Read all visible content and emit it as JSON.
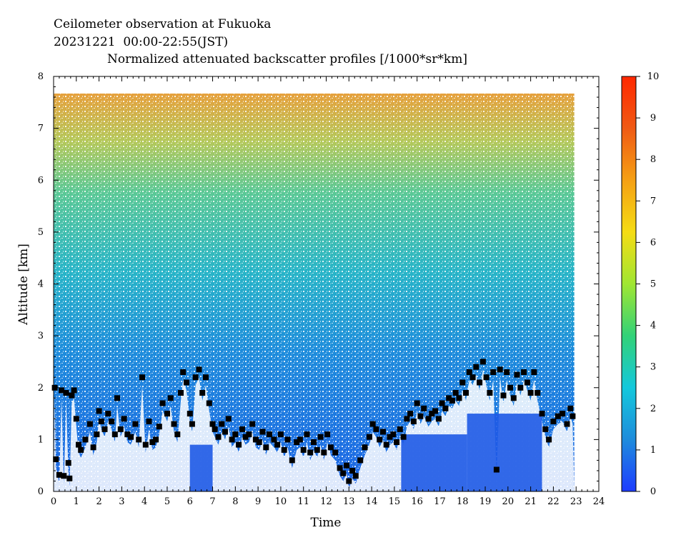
{
  "header": {
    "line1": "Ceilometer observation at Fukuoka",
    "line2": "20231221  00:00-22:55(JST)",
    "line3": "Normalized attenuated backscatter profiles [/1000*sr*km]"
  },
  "chart_data": {
    "type": "heatmap",
    "title": "Normalized attenuated backscatter profiles [/1000*sr*km]",
    "xlabel": "Time",
    "ylabel": "Altitude [km]",
    "xlim": [
      0,
      24
    ],
    "ylim": [
      0,
      8
    ],
    "x_ticks": [
      "0",
      "1",
      "2",
      "3",
      "4",
      "5",
      "6",
      "7",
      "8",
      "9",
      "10",
      "11",
      "12",
      "13",
      "14",
      "15",
      "16",
      "17",
      "18",
      "19",
      "20",
      "21",
      "22",
      "23",
      "24"
    ],
    "y_ticks": [
      "0",
      "1",
      "2",
      "3",
      "4",
      "5",
      "6",
      "7",
      "8"
    ],
    "data_extent": {
      "time_start": 0,
      "time_end": 22.92,
      "altitude_top": 7.67
    },
    "colorbar": {
      "range": [
        0,
        10
      ],
      "ticks": [
        "0",
        "1",
        "2",
        "3",
        "4",
        "5",
        "6",
        "7",
        "8",
        "9",
        "10"
      ],
      "stops": [
        "#1e3cff",
        "#1e8cdc",
        "#14c8dc",
        "#32d278",
        "#a0e632",
        "#f5dc14",
        "#f5a014",
        "#f05a14",
        "#ff2800"
      ]
    },
    "cloud_base_series": {
      "name": "",
      "marker": "black square",
      "points": [
        [
          0.05,
          2.0
        ],
        [
          0.1,
          0.62
        ],
        [
          0.25,
          0.32
        ],
        [
          0.35,
          1.95
        ],
        [
          0.45,
          0.3
        ],
        [
          0.55,
          1.9
        ],
        [
          0.65,
          0.55
        ],
        [
          0.7,
          0.25
        ],
        [
          0.8,
          1.85
        ],
        [
          0.9,
          1.95
        ],
        [
          1.0,
          1.4
        ],
        [
          1.1,
          0.9
        ],
        [
          1.2,
          0.8
        ],
        [
          1.4,
          1.0
        ],
        [
          1.6,
          1.3
        ],
        [
          1.75,
          0.85
        ],
        [
          1.9,
          1.1
        ],
        [
          2.0,
          1.55
        ],
        [
          2.1,
          1.35
        ],
        [
          2.25,
          1.2
        ],
        [
          2.4,
          1.5
        ],
        [
          2.55,
          1.35
        ],
        [
          2.7,
          1.1
        ],
        [
          2.8,
          1.8
        ],
        [
          2.95,
          1.2
        ],
        [
          3.1,
          1.4
        ],
        [
          3.25,
          1.1
        ],
        [
          3.4,
          1.05
        ],
        [
          3.6,
          1.3
        ],
        [
          3.75,
          1.0
        ],
        [
          3.9,
          2.2
        ],
        [
          4.05,
          0.9
        ],
        [
          4.2,
          1.35
        ],
        [
          4.35,
          0.95
        ],
        [
          4.5,
          1.0
        ],
        [
          4.65,
          1.25
        ],
        [
          4.8,
          1.7
        ],
        [
          5.0,
          1.5
        ],
        [
          5.15,
          1.8
        ],
        [
          5.3,
          1.3
        ],
        [
          5.45,
          1.1
        ],
        [
          5.6,
          1.9
        ],
        [
          5.7,
          2.3
        ],
        [
          5.85,
          2.1
        ],
        [
          6.0,
          1.5
        ],
        [
          6.1,
          1.3
        ],
        [
          6.25,
          2.2
        ],
        [
          6.4,
          2.35
        ],
        [
          6.55,
          1.9
        ],
        [
          6.7,
          2.2
        ],
        [
          6.85,
          1.7
        ],
        [
          7.0,
          1.3
        ],
        [
          7.1,
          1.2
        ],
        [
          7.25,
          1.05
        ],
        [
          7.4,
          1.3
        ],
        [
          7.55,
          1.15
        ],
        [
          7.7,
          1.4
        ],
        [
          7.85,
          1.0
        ],
        [
          8.0,
          1.1
        ],
        [
          8.15,
          0.9
        ],
        [
          8.3,
          1.2
        ],
        [
          8.45,
          1.05
        ],
        [
          8.6,
          1.1
        ],
        [
          8.75,
          1.3
        ],
        [
          8.9,
          1.0
        ],
        [
          9.05,
          0.95
        ],
        [
          9.2,
          1.15
        ],
        [
          9.35,
          0.85
        ],
        [
          9.5,
          1.1
        ],
        [
          9.7,
          1.0
        ],
        [
          9.85,
          0.9
        ],
        [
          10.0,
          1.1
        ],
        [
          10.15,
          0.8
        ],
        [
          10.3,
          1.0
        ],
        [
          10.5,
          0.6
        ],
        [
          10.7,
          0.95
        ],
        [
          10.85,
          1.0
        ],
        [
          11.0,
          0.8
        ],
        [
          11.15,
          1.1
        ],
        [
          11.3,
          0.75
        ],
        [
          11.45,
          0.95
        ],
        [
          11.6,
          0.8
        ],
        [
          11.75,
          1.05
        ],
        [
          11.9,
          0.75
        ],
        [
          12.05,
          1.1
        ],
        [
          12.2,
          0.85
        ],
        [
          12.4,
          0.75
        ],
        [
          12.6,
          0.45
        ],
        [
          12.75,
          0.35
        ],
        [
          12.9,
          0.5
        ],
        [
          13.0,
          0.2
        ],
        [
          13.15,
          0.4
        ],
        [
          13.3,
          0.3
        ],
        [
          13.5,
          0.6
        ],
        [
          13.7,
          0.85
        ],
        [
          13.9,
          1.05
        ],
        [
          14.05,
          1.3
        ],
        [
          14.2,
          1.2
        ],
        [
          14.35,
          1.0
        ],
        [
          14.5,
          1.15
        ],
        [
          14.65,
          0.9
        ],
        [
          14.8,
          1.05
        ],
        [
          14.95,
          1.1
        ],
        [
          15.1,
          0.95
        ],
        [
          15.25,
          1.2
        ],
        [
          15.4,
          1.05
        ],
        [
          15.55,
          1.4
        ],
        [
          15.7,
          1.5
        ],
        [
          15.85,
          1.35
        ],
        [
          16.0,
          1.7
        ],
        [
          16.15,
          1.45
        ],
        [
          16.3,
          1.6
        ],
        [
          16.5,
          1.4
        ],
        [
          16.65,
          1.5
        ],
        [
          16.8,
          1.55
        ],
        [
          16.95,
          1.4
        ],
        [
          17.1,
          1.7
        ],
        [
          17.25,
          1.6
        ],
        [
          17.4,
          1.8
        ],
        [
          17.55,
          1.75
        ],
        [
          17.7,
          1.9
        ],
        [
          17.85,
          1.8
        ],
        [
          18.0,
          2.1
        ],
        [
          18.15,
          1.9
        ],
        [
          18.3,
          2.3
        ],
        [
          18.45,
          2.2
        ],
        [
          18.6,
          2.4
        ],
        [
          18.75,
          2.1
        ],
        [
          18.9,
          2.5
        ],
        [
          19.05,
          2.2
        ],
        [
          19.2,
          1.9
        ],
        [
          19.35,
          2.3
        ],
        [
          19.5,
          0.42
        ],
        [
          19.65,
          2.35
        ],
        [
          19.8,
          1.85
        ],
        [
          19.95,
          2.3
        ],
        [
          20.1,
          2.0
        ],
        [
          20.25,
          1.8
        ],
        [
          20.4,
          2.25
        ],
        [
          20.55,
          2.0
        ],
        [
          20.7,
          2.3
        ],
        [
          20.85,
          2.1
        ],
        [
          21.0,
          1.9
        ],
        [
          21.15,
          2.3
        ],
        [
          21.3,
          1.9
        ],
        [
          21.5,
          1.5
        ],
        [
          21.65,
          1.2
        ],
        [
          21.8,
          1.0
        ],
        [
          22.0,
          1.35
        ],
        [
          22.2,
          1.45
        ],
        [
          22.4,
          1.5
        ],
        [
          22.6,
          1.3
        ],
        [
          22.75,
          1.6
        ],
        [
          22.85,
          1.45
        ]
      ]
    },
    "colors": {
      "axes": "#000000",
      "background": "#ffffff"
    }
  }
}
